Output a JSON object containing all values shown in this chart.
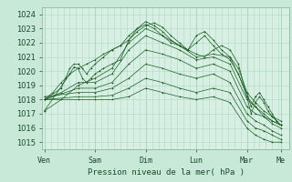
{
  "bg_color": "#c8e8d8",
  "plot_bg_color": "#d8f0e4",
  "grid_color": "#b0d8c4",
  "line_color": "#1a5c22",
  "title": "Pression niveau de la mer( hPa )",
  "ylim": [
    1014.5,
    1024.5
  ],
  "yticks": [
    1015,
    1016,
    1017,
    1018,
    1019,
    1020,
    1021,
    1022,
    1023,
    1024
  ],
  "x_day_labels": [
    "Ven",
    "Sam",
    "Dim",
    "Lun",
    "Mar",
    "Me"
  ],
  "x_day_positions": [
    0,
    24,
    48,
    72,
    96,
    112
  ],
  "xlim": [
    -1,
    116
  ],
  "series": [
    [
      0,
      1018.0,
      4,
      1018.5,
      8,
      1019.2,
      12,
      1019.8,
      16,
      1020.2,
      20,
      1020.5,
      24,
      1020.8,
      28,
      1021.2,
      32,
      1021.5,
      36,
      1021.8,
      40,
      1022.2,
      44,
      1022.8,
      48,
      1023.2,
      52,
      1023.4,
      56,
      1023.1,
      60,
      1022.5,
      64,
      1022.0,
      68,
      1021.5,
      72,
      1021.2,
      76,
      1021.0,
      80,
      1021.5,
      84,
      1021.8,
      88,
      1021.5,
      92,
      1020.5,
      96,
      1018.2,
      100,
      1017.5,
      104,
      1016.8,
      108,
      1016.5,
      112,
      1016.2
    ],
    [
      0,
      1017.2,
      8,
      1018.0,
      16,
      1019.0,
      24,
      1019.5,
      32,
      1020.2,
      40,
      1022.0,
      48,
      1023.0,
      56,
      1022.5,
      64,
      1021.8,
      72,
      1021.0,
      80,
      1021.2,
      88,
      1021.0,
      96,
      1018.5,
      100,
      1017.8,
      104,
      1017.2,
      108,
      1016.8,
      112,
      1016.5
    ],
    [
      0,
      1018.0,
      8,
      1018.5,
      16,
      1019.2,
      24,
      1019.2,
      32,
      1019.8,
      40,
      1021.5,
      48,
      1022.5,
      56,
      1022.0,
      64,
      1021.5,
      72,
      1020.8,
      80,
      1021.0,
      88,
      1020.5,
      96,
      1018.0,
      100,
      1017.5,
      104,
      1017.0,
      108,
      1016.5,
      112,
      1016.2
    ],
    [
      0,
      1018.0,
      16,
      1018.8,
      24,
      1018.8,
      32,
      1019.2,
      40,
      1020.5,
      48,
      1021.5,
      56,
      1021.2,
      64,
      1020.8,
      72,
      1020.2,
      80,
      1020.5,
      88,
      1020.0,
      96,
      1017.5,
      100,
      1017.0,
      104,
      1016.8,
      108,
      1016.3,
      112,
      1016.0
    ],
    [
      0,
      1018.2,
      16,
      1018.5,
      24,
      1018.5,
      32,
      1018.8,
      40,
      1019.5,
      48,
      1020.5,
      56,
      1020.2,
      64,
      1019.8,
      72,
      1019.5,
      80,
      1019.8,
      88,
      1019.2,
      96,
      1017.0,
      100,
      1016.5,
      104,
      1016.2,
      108,
      1015.8,
      112,
      1015.5
    ],
    [
      0,
      1018.0,
      16,
      1018.2,
      24,
      1018.2,
      32,
      1018.3,
      40,
      1018.8,
      48,
      1019.5,
      56,
      1019.2,
      64,
      1018.8,
      72,
      1018.5,
      80,
      1018.8,
      88,
      1018.5,
      96,
      1016.5,
      100,
      1016.0,
      104,
      1015.8,
      108,
      1015.5,
      112,
      1015.2
    ],
    [
      0,
      1018.0,
      16,
      1018.0,
      24,
      1018.0,
      32,
      1018.0,
      40,
      1018.2,
      48,
      1018.8,
      56,
      1018.5,
      64,
      1018.2,
      72,
      1018.0,
      80,
      1018.2,
      88,
      1017.8,
      96,
      1016.0,
      100,
      1015.5,
      104,
      1015.2,
      108,
      1015.0,
      112,
      1015.0
    ],
    [
      0,
      1017.2,
      12,
      1019.8,
      14,
      1020.3,
      16,
      1020.2,
      18,
      1019.5,
      20,
      1019.2,
      22,
      1019.5,
      24,
      1019.8,
      26,
      1020.0,
      28,
      1020.2,
      32,
      1020.5,
      36,
      1020.8,
      40,
      1022.2,
      44,
      1023.0,
      48,
      1023.5,
      52,
      1023.2,
      56,
      1022.8,
      60,
      1022.2,
      64,
      1021.8,
      68,
      1021.5,
      72,
      1022.5,
      76,
      1022.8,
      80,
      1022.2,
      84,
      1021.5,
      88,
      1021.0,
      92,
      1020.2,
      96,
      1018.5,
      98,
      1017.5,
      100,
      1018.2,
      102,
      1018.5,
      104,
      1018.0,
      106,
      1017.5,
      108,
      1017.0,
      110,
      1016.5,
      112,
      1016.2
    ],
    [
      0,
      1018.0,
      8,
      1018.8,
      10,
      1019.5,
      12,
      1020.2,
      14,
      1020.5,
      16,
      1020.5,
      18,
      1020.2,
      20,
      1019.8,
      22,
      1020.2,
      24,
      1020.5,
      28,
      1021.0,
      32,
      1021.5,
      36,
      1021.8,
      40,
      1022.5,
      44,
      1023.0,
      48,
      1023.3,
      52,
      1023.0,
      56,
      1022.5,
      60,
      1022.0,
      64,
      1021.8,
      68,
      1021.5,
      72,
      1022.0,
      76,
      1022.5,
      80,
      1021.8,
      84,
      1021.2,
      88,
      1020.8,
      92,
      1019.8,
      96,
      1018.2,
      98,
      1017.0,
      100,
      1017.8,
      102,
      1018.2,
      104,
      1017.8,
      106,
      1017.2,
      108,
      1016.8,
      110,
      1016.5,
      112,
      1016.2
    ]
  ]
}
